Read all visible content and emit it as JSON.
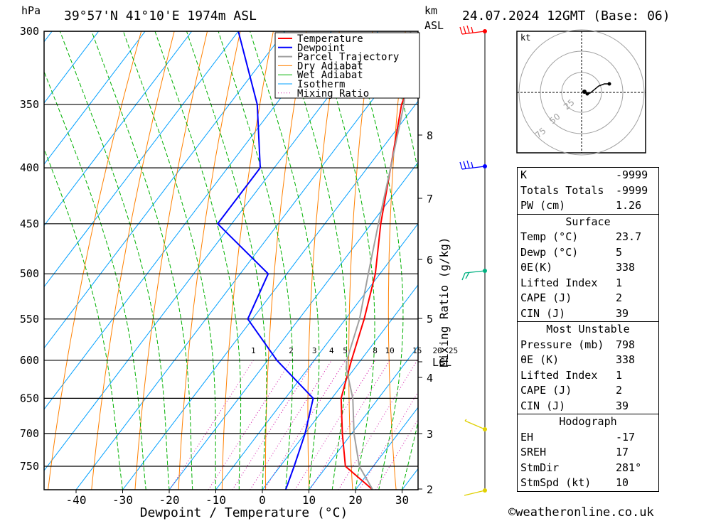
{
  "header": {
    "pressure_unit": "hPa",
    "location": "39°57'N  41°10'E  1974m  ASL",
    "km_unit": "km",
    "km_sub": "ASL",
    "datetime": "24.07.2024  12GMT  (Base: 06)"
  },
  "chart_data": {
    "type": "line",
    "chart_kind": "skew-T log-P",
    "xlabel": "Dewpoint / Temperature (°C)",
    "ylabel": "hPa",
    "secondary_label": "Mixing Ratio (g/kg)",
    "x_ticks": [
      -40,
      -30,
      -20,
      -10,
      0,
      10,
      20,
      30
    ],
    "pressure_levels": [
      300,
      350,
      400,
      450,
      500,
      550,
      600,
      650,
      700,
      750
    ],
    "km_ticks": [
      "8",
      "7",
      "6",
      "5",
      "4",
      "3",
      "2"
    ],
    "lcl_label": "LCL",
    "mixing_ratio_labels": [
      "1",
      "2",
      "3",
      "4",
      "5",
      "8",
      "10",
      "15",
      "20",
      "25"
    ],
    "legend": [
      "Temperature",
      "Dewpoint",
      "Parcel Trajectory",
      "Dry Adiabat",
      "Wet Adiabat",
      "Isotherm",
      "Mixing Ratio"
    ],
    "colors": {
      "temperature": "#ff0000",
      "dewpoint": "#0000ff",
      "parcel": "#a0a0a0",
      "dry_adiabat": "#ff8000",
      "wet_adiabat": "#00b000",
      "isotherm": "#00a0ff",
      "mixing_ratio": "#d000a0"
    },
    "series": [
      {
        "name": "Temperature",
        "points": [
          [
            23.7,
            788
          ],
          [
            14,
            750
          ],
          [
            8,
            700
          ],
          [
            2,
            650
          ],
          [
            -2,
            600
          ],
          [
            -6,
            550
          ],
          [
            -11,
            500
          ],
          [
            -18,
            450
          ],
          [
            -25,
            400
          ],
          [
            -33,
            350
          ],
          [
            -39,
            300
          ]
        ]
      },
      {
        "name": "Dewpoint",
        "points": [
          [
            5,
            788
          ],
          [
            3,
            750
          ],
          [
            0,
            700
          ],
          [
            -4,
            650
          ],
          [
            -18,
            600
          ],
          [
            -31,
            550
          ],
          [
            -34,
            500
          ],
          [
            -53,
            450
          ],
          [
            -53,
            400
          ],
          [
            -64,
            350
          ],
          [
            -80,
            300
          ]
        ]
      },
      {
        "name": "Parcel Trajectory",
        "points": [
          [
            23.7,
            788
          ],
          [
            17,
            750
          ],
          [
            10.5,
            700
          ],
          [
            4.5,
            650
          ],
          [
            -1.5,
            612
          ],
          [
            -3,
            600
          ],
          [
            -7,
            550
          ],
          [
            -12.5,
            500
          ],
          [
            -18.5,
            450
          ],
          [
            -25,
            400
          ],
          [
            -32.5,
            350
          ],
          [
            -43,
            300
          ]
        ]
      }
    ]
  },
  "hodograph": {
    "unit": "kt",
    "ring_labels": [
      "25",
      "50",
      "75"
    ]
  },
  "indices": {
    "k_label": "K",
    "k_value": "-9999",
    "tt_label": "Totals Totals",
    "tt_value": "-9999",
    "pw_label": "PW (cm)",
    "pw_value": "1.26",
    "surface_title": "Surface",
    "s_temp_label": "Temp (°C)",
    "s_temp_value": "23.7",
    "s_dewp_label": "Dewp (°C)",
    "s_dewp_value": "5",
    "s_theta_label": "θE(K)",
    "s_theta_value": "338",
    "s_li_label": "Lifted Index",
    "s_li_value": "1",
    "s_cape_label": "CAPE (J)",
    "s_cape_value": "2",
    "s_cin_label": "CIN (J)",
    "s_cin_value": "39",
    "mu_title": "Most Unstable",
    "mu_p_label": "Pressure (mb)",
    "mu_p_value": "798",
    "mu_theta_label": "θE (K)",
    "mu_theta_value": "338",
    "mu_li_label": "Lifted Index",
    "mu_li_value": "1",
    "mu_cape_label": "CAPE (J)",
    "mu_cape_value": "2",
    "mu_cin_label": "CIN (J)",
    "mu_cin_value": "39",
    "hodo_title": "Hodograph",
    "eh_label": "EH",
    "eh_value": "-17",
    "sreh_label": "SREH",
    "sreh_value": "17",
    "stmdir_label": "StmDir",
    "stmdir_value": "281°",
    "stmspd_label": "StmSpd (kt)",
    "stmspd_value": "10"
  },
  "footer": {
    "copyright": "©weatheronline.co.uk"
  }
}
